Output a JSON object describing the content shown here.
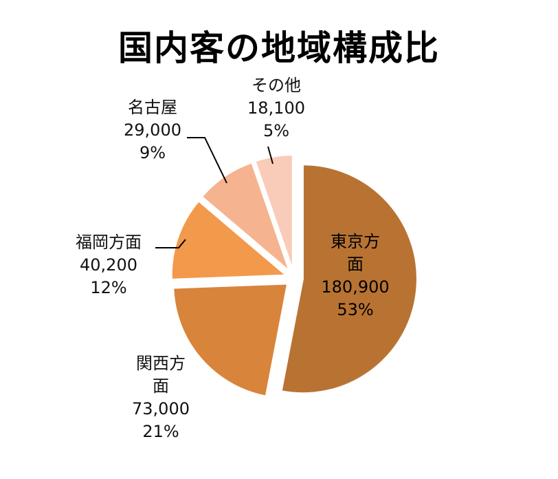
{
  "chart_data": {
    "type": "pie",
    "title": "国内客の地域構成比",
    "slices": [
      {
        "label": "東京方面",
        "value_text": "180,900",
        "percent_text": "53%",
        "value": 180900,
        "color": "#b87333"
      },
      {
        "label": "関西方面",
        "value_text": "73,000",
        "percent_text": "21%",
        "value": 73000,
        "color": "#d9843b"
      },
      {
        "label": "福岡方面",
        "value_text": "40,200",
        "percent_text": "12%",
        "value": 40200,
        "color": "#f3994b"
      },
      {
        "label": "名古屋",
        "value_text": "29,000",
        "percent_text": "9%",
        "value": 29000,
        "color": "#f5b48f"
      },
      {
        "label": "その他",
        "value_text": "18,100",
        "percent_text": "5%",
        "value": 18100,
        "color": "#f8ccb8"
      }
    ]
  }
}
